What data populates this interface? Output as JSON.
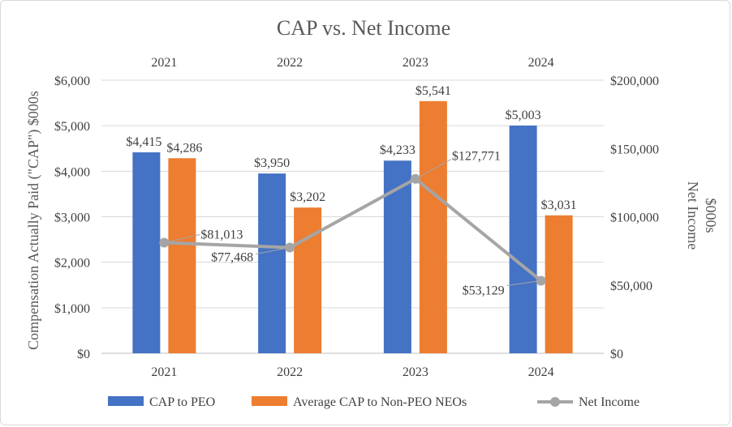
{
  "chart_data": {
    "type": "bar",
    "title": "CAP vs. Net Income",
    "categories": [
      "2021",
      "2022",
      "2023",
      "2024"
    ],
    "ylabel": "Compensation Actually Paid (\"CAP\") $000s",
    "y2label": "Net Income $000s",
    "y2label_lines": [
      "Net Income",
      "$000s"
    ],
    "ylim": [
      0,
      6000
    ],
    "y2lim": [
      0,
      200000
    ],
    "yticks": [
      "$0",
      "$1,000",
      "$2,000",
      "$3,000",
      "$4,000",
      "$5,000",
      "$6,000"
    ],
    "y2ticks": [
      "$0",
      "$50,000",
      "$100,000",
      "$150,000",
      "$200,000"
    ],
    "grid": true,
    "legend_position": "bottom",
    "series": [
      {
        "name": "CAP to PEO",
        "type": "bar",
        "axis": "left",
        "color": "#4472C4",
        "values": [
          4415,
          3950,
          4233,
          5003
        ],
        "labels": [
          "$4,415",
          "$3,950",
          "$4,233",
          "$5,003"
        ]
      },
      {
        "name": "Average CAP to Non-PEO NEOs",
        "type": "bar",
        "axis": "left",
        "color": "#ED7D31",
        "values": [
          4286,
          3202,
          5541,
          3031
        ],
        "labels": [
          "$4,286",
          "$3,202",
          "$5,541",
          "$3,031"
        ]
      },
      {
        "name": "Net Income",
        "type": "line",
        "axis": "right",
        "color": "#A5A5A5",
        "values": [
          81013,
          77468,
          127771,
          53129
        ],
        "labels": [
          "$81,013",
          "$77,468",
          "$127,771",
          "$53,129"
        ]
      }
    ]
  }
}
